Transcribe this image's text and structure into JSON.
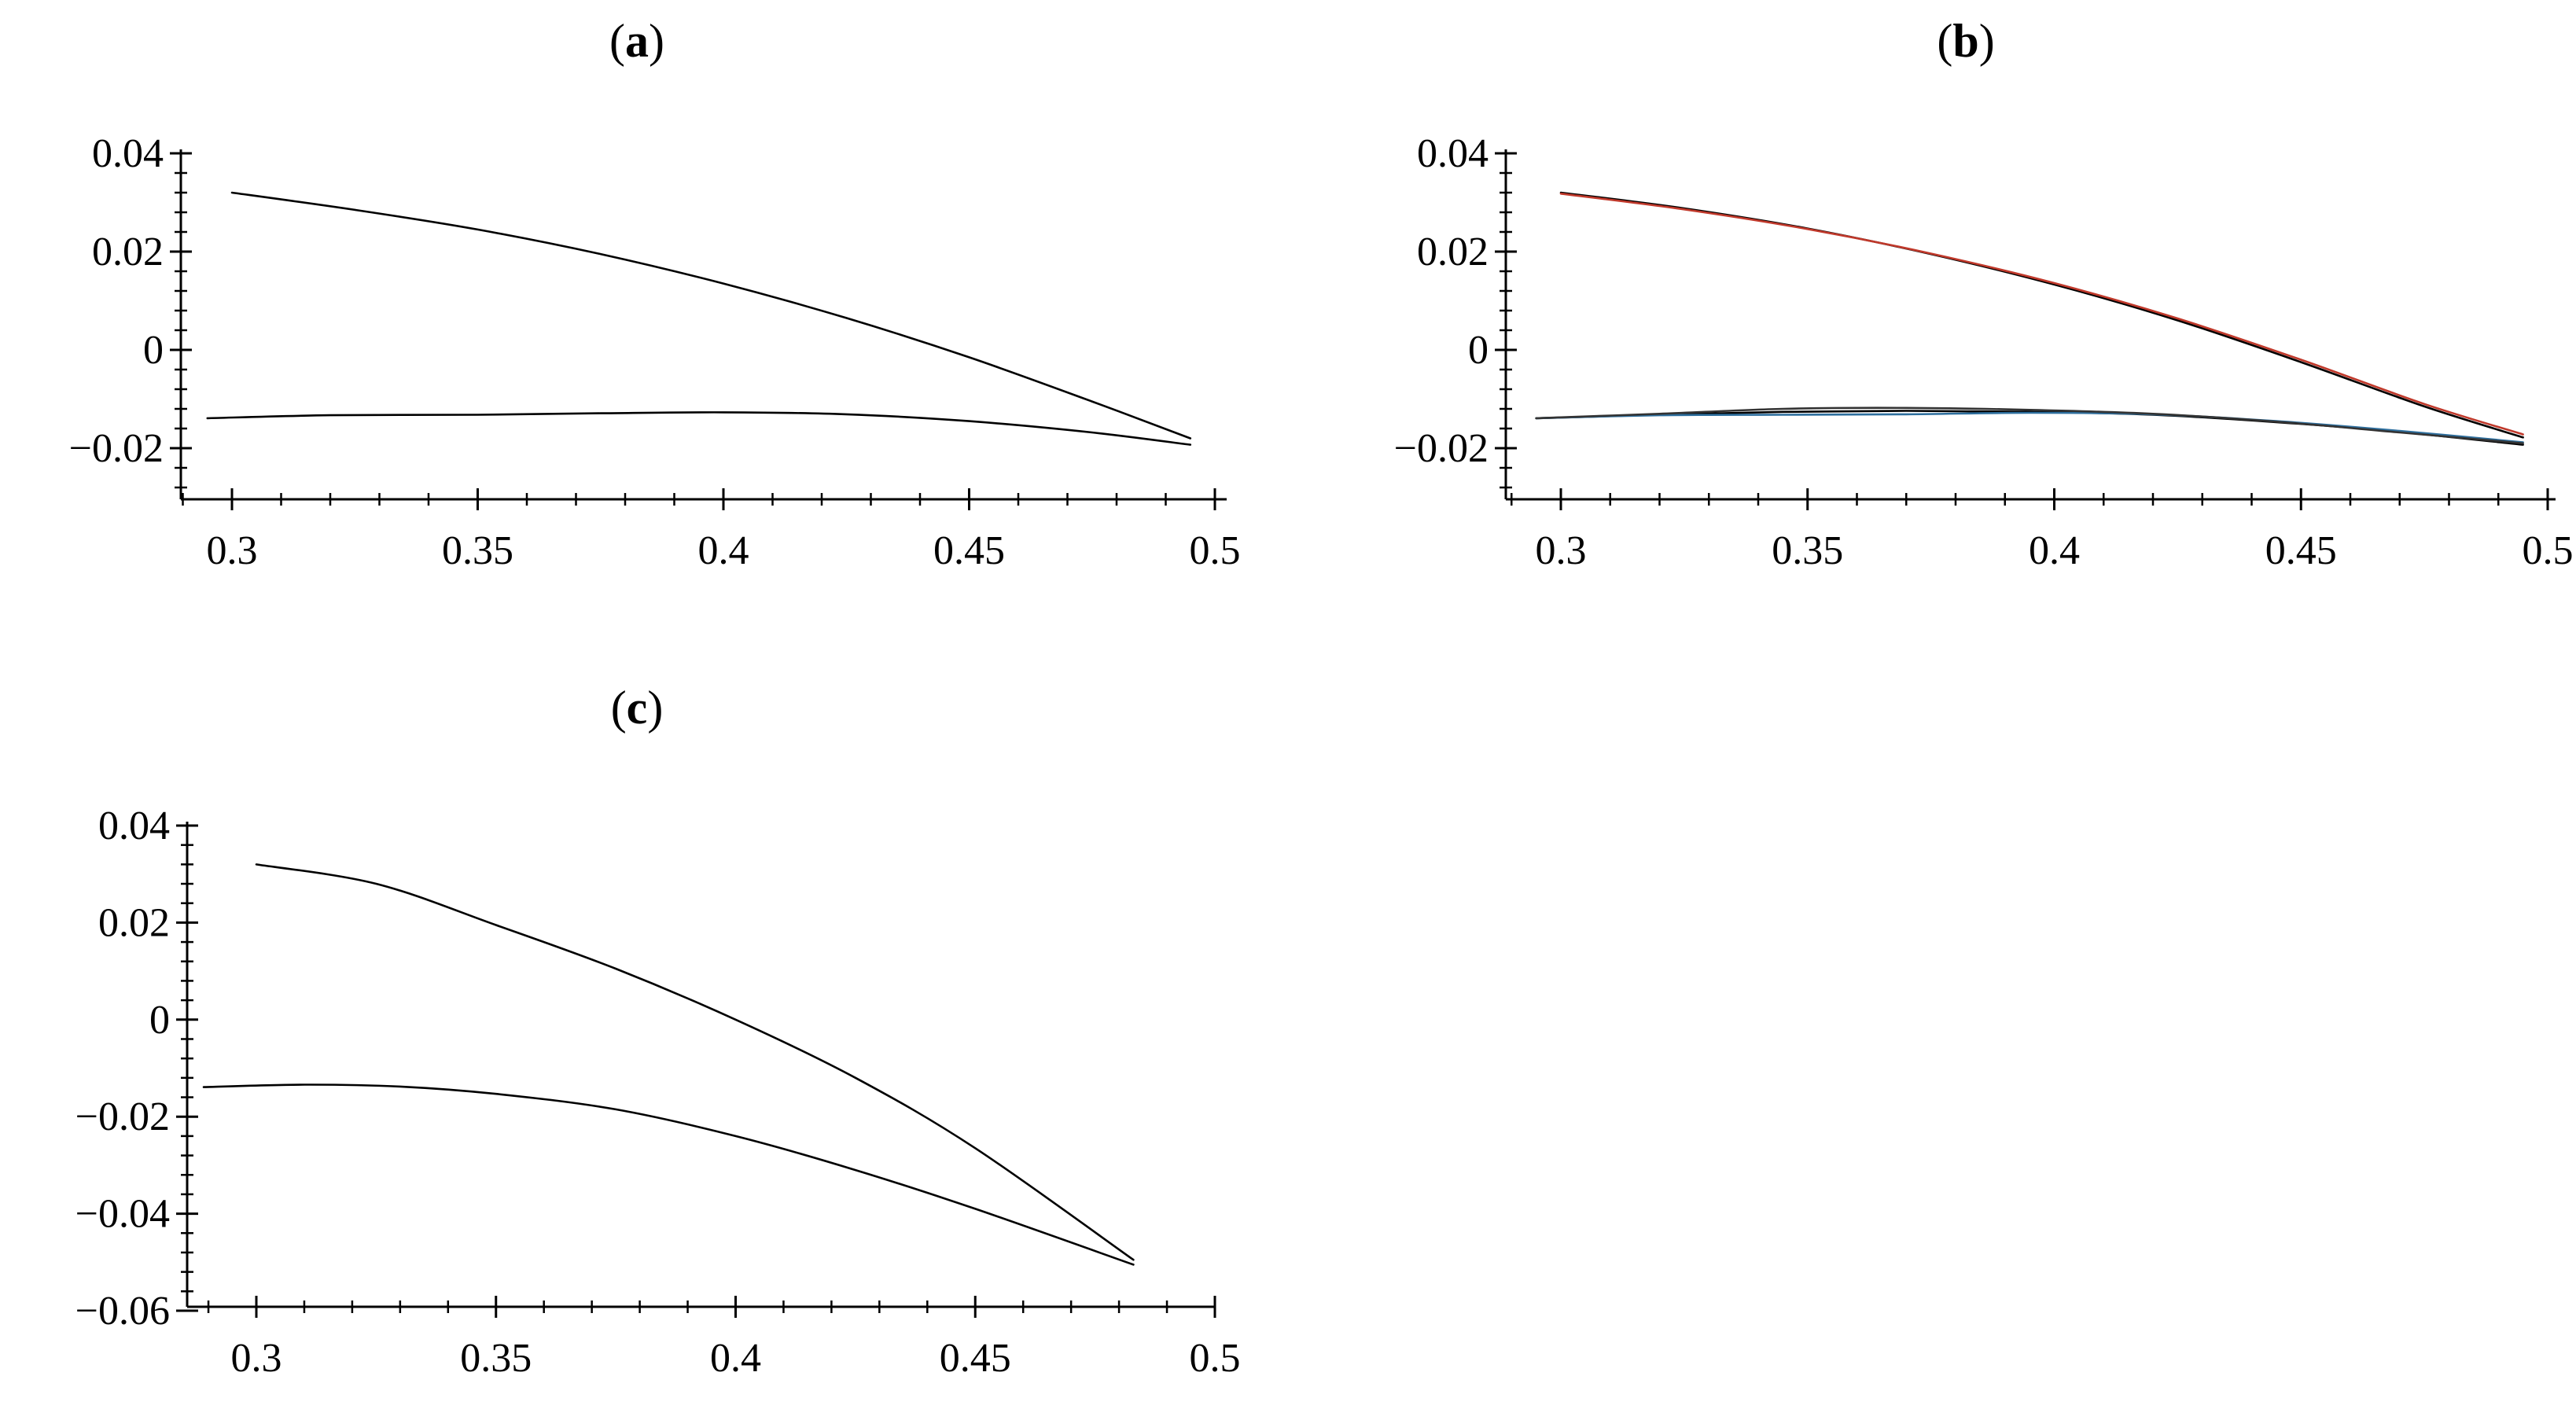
{
  "figure": {
    "panels": [
      {
        "label_letter": "a",
        "label_open": "(",
        "label_close": ")"
      },
      {
        "label_letter": "b",
        "label_open": "(",
        "label_close": ")"
      },
      {
        "label_letter": "c",
        "label_open": "(",
        "label_close": ")"
      }
    ]
  },
  "chart_data": [
    {
      "type": "line",
      "panel": "a",
      "title": "",
      "xlabel": "",
      "ylabel": "",
      "xlim": [
        0.29,
        0.5
      ],
      "ylim": [
        -0.03,
        0.04
      ],
      "x_ticks": [
        0.3,
        0.35,
        0.4,
        0.45,
        0.5
      ],
      "x_tick_labels": [
        "0.3",
        "0.35",
        "0.4",
        "0.45",
        "0.5"
      ],
      "y_ticks": [
        0.04,
        0.02,
        0,
        -0.02
      ],
      "y_tick_labels": [
        "0.04",
        "0.02",
        "0",
        "−0.02"
      ],
      "grid": false,
      "series": [
        {
          "color": "#000000",
          "x": [
            0.3,
            0.325,
            0.35,
            0.375,
            0.4,
            0.425,
            0.45,
            0.475,
            0.495
          ],
          "y": [
            0.032,
            0.0285,
            0.0245,
            0.0195,
            0.0135,
            0.0065,
            -0.0015,
            -0.0105,
            -0.018
          ]
        },
        {
          "color": "#000000",
          "x": [
            0.295,
            0.32,
            0.35,
            0.375,
            0.4,
            0.425,
            0.45,
            0.475,
            0.495
          ],
          "y": [
            -0.0139,
            -0.0133,
            -0.0132,
            -0.0129,
            -0.0127,
            -0.0131,
            -0.0145,
            -0.0168,
            -0.0193
          ]
        }
      ]
    },
    {
      "type": "line",
      "panel": "b",
      "title": "",
      "xlabel": "",
      "ylabel": "",
      "xlim": [
        0.29,
        0.5
      ],
      "ylim": [
        -0.03,
        0.04
      ],
      "x_ticks": [
        0.3,
        0.35,
        0.4,
        0.45,
        0.5
      ],
      "x_tick_labels": [
        "0.3",
        "0.35",
        "0.4",
        "0.45",
        "0.5"
      ],
      "y_ticks": [
        0.04,
        0.02,
        0,
        -0.02
      ],
      "y_tick_labels": [
        "0.04",
        "0.02",
        "0",
        "−0.02"
      ],
      "grid": false,
      "series": [
        {
          "color": "#000000",
          "x": [
            0.3,
            0.325,
            0.35,
            0.375,
            0.4,
            0.425,
            0.45,
            0.475,
            0.495
          ],
          "y": [
            0.032,
            0.0288,
            0.0247,
            0.0195,
            0.0133,
            0.006,
            -0.0025,
            -0.0115,
            -0.0178
          ]
        },
        {
          "color": "#c0392b",
          "x": [
            0.3,
            0.325,
            0.35,
            0.375,
            0.4,
            0.425,
            0.45,
            0.475,
            0.495
          ],
          "y": [
            0.0318,
            0.0286,
            0.0246,
            0.0196,
            0.0136,
            0.0064,
            -0.002,
            -0.011,
            -0.0172
          ]
        },
        {
          "color": "#000000",
          "x": [
            0.295,
            0.32,
            0.345,
            0.37,
            0.395,
            0.42,
            0.445,
            0.47,
            0.495
          ],
          "y": [
            -0.0139,
            -0.0132,
            -0.0126,
            -0.0124,
            -0.0126,
            -0.0132,
            -0.0147,
            -0.0167,
            -0.0193
          ]
        },
        {
          "color": "#2e6f9e",
          "x": [
            0.295,
            0.32,
            0.345,
            0.37,
            0.395,
            0.42,
            0.445,
            0.47,
            0.495
          ],
          "y": [
            -0.0139,
            -0.0133,
            -0.0132,
            -0.0131,
            -0.0128,
            -0.0131,
            -0.0145,
            -0.0165,
            -0.0188
          ]
        },
        {
          "color": "#333333",
          "x": [
            0.295,
            0.32,
            0.345,
            0.37,
            0.395,
            0.42,
            0.445,
            0.47,
            0.495
          ],
          "y": [
            -0.0139,
            -0.013,
            -0.012,
            -0.0118,
            -0.0122,
            -0.013,
            -0.0146,
            -0.0168,
            -0.019
          ]
        }
      ]
    },
    {
      "type": "line",
      "panel": "c",
      "title": "",
      "xlabel": "",
      "ylabel": "",
      "xlim": [
        0.29,
        0.5
      ],
      "ylim": [
        -0.06,
        0.04
      ],
      "x_ticks": [
        0.3,
        0.35,
        0.4,
        0.45,
        0.5
      ],
      "x_tick_labels": [
        "0.3",
        "0.35",
        "0.4",
        "0.45",
        "0.5"
      ],
      "y_ticks": [
        0.04,
        0.02,
        0,
        -0.02,
        -0.04,
        -0.06
      ],
      "y_tick_labels": [
        "0.04",
        "0.02",
        "0",
        "−0.02",
        "−0.04",
        "−0.06"
      ],
      "grid": false,
      "series": [
        {
          "color": "#000000",
          "x": [
            0.3,
            0.325,
            0.35,
            0.375,
            0.4,
            0.425,
            0.45,
            0.483
          ],
          "y": [
            0.032,
            0.028,
            0.0195,
            0.0105,
            0.0,
            -0.012,
            -0.0265,
            -0.0495
          ]
        },
        {
          "color": "#000000",
          "x": [
            0.289,
            0.31,
            0.33,
            0.35,
            0.375,
            0.4,
            0.425,
            0.45,
            0.483
          ],
          "y": [
            -0.0139,
            -0.0134,
            -0.0138,
            -0.0153,
            -0.0185,
            -0.024,
            -0.031,
            -0.039,
            -0.0505
          ]
        }
      ]
    }
  ]
}
